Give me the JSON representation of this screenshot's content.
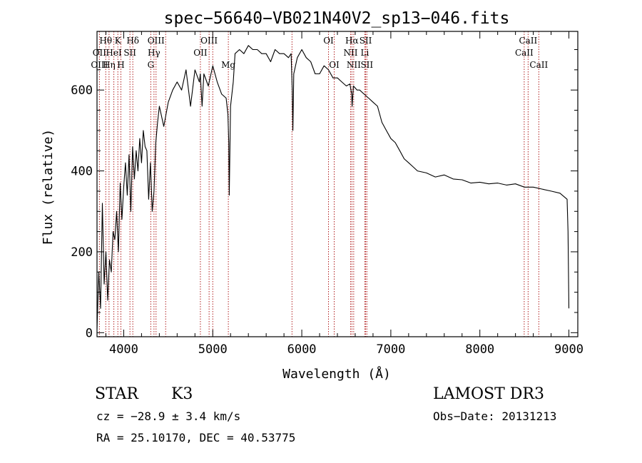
{
  "chart_data": {
    "type": "line",
    "title": "spec−56640−VB021N40V2_sp13−046.fits",
    "xlabel": "Wavelength (Å)",
    "ylabel": "Flux (relative)",
    "xlim": [
      3700,
      9100
    ],
    "ylim": [
      -10,
      745
    ],
    "x_ticks": [
      4000,
      5000,
      6000,
      7000,
      8000,
      9000
    ],
    "y_ticks": [
      0,
      200,
      400,
      600
    ],
    "grid": false,
    "line_color": "#000000",
    "marker_color": "#b22222",
    "series": [
      {
        "name": "flux",
        "x": [
          3700,
          3720,
          3740,
          3760,
          3780,
          3800,
          3820,
          3840,
          3860,
          3880,
          3900,
          3920,
          3940,
          3960,
          3980,
          4000,
          4020,
          4040,
          4060,
          4080,
          4100,
          4120,
          4140,
          4160,
          4180,
          4200,
          4220,
          4240,
          4260,
          4280,
          4300,
          4320,
          4340,
          4360,
          4380,
          4400,
          4450,
          4500,
          4550,
          4600,
          4650,
          4700,
          4750,
          4800,
          4850,
          4860,
          4880,
          4900,
          4950,
          5000,
          5050,
          5100,
          5150,
          5170,
          5180,
          5185,
          5200,
          5230,
          5250,
          5300,
          5350,
          5400,
          5450,
          5500,
          5550,
          5600,
          5650,
          5700,
          5750,
          5800,
          5850,
          5880,
          5893,
          5900,
          5910,
          5950,
          6000,
          6050,
          6100,
          6150,
          6200,
          6250,
          6300,
          6350,
          6400,
          6450,
          6500,
          6540,
          6560,
          6565,
          6580,
          6620,
          6650,
          6700,
          6750,
          6800,
          6850,
          6900,
          6950,
          7000,
          7050,
          7100,
          7150,
          7200,
          7250,
          7300,
          7400,
          7500,
          7600,
          7700,
          7800,
          7900,
          8000,
          8100,
          8200,
          8300,
          8400,
          8500,
          8600,
          8700,
          8800,
          8900,
          8980,
          8990,
          9000
        ],
        "values": [
          10,
          150,
          60,
          320,
          120,
          200,
          80,
          180,
          150,
          250,
          230,
          300,
          200,
          370,
          280,
          360,
          420,
          340,
          440,
          300,
          460,
          380,
          450,
          400,
          480,
          420,
          500,
          460,
          450,
          330,
          420,
          300,
          350,
          470,
          520,
          560,
          510,
          570,
          600,
          620,
          600,
          650,
          560,
          650,
          620,
          640,
          560,
          640,
          610,
          660,
          620,
          590,
          580,
          540,
          470,
          340,
          560,
          620,
          690,
          700,
          690,
          710,
          700,
          700,
          690,
          690,
          670,
          700,
          690,
          690,
          680,
          690,
          600,
          500,
          640,
          680,
          700,
          680,
          670,
          640,
          640,
          660,
          650,
          630,
          630,
          620,
          610,
          615,
          590,
          560,
          610,
          600,
          600,
          590,
          580,
          570,
          560,
          520,
          500,
          480,
          470,
          450,
          430,
          420,
          410,
          400,
          395,
          385,
          390,
          380,
          378,
          370,
          372,
          368,
          370,
          365,
          368,
          360,
          360,
          355,
          350,
          345,
          330,
          250,
          60
        ]
      }
    ],
    "lines": [
      {
        "name": "Hθ",
        "wavelength": 3798,
        "row": 1
      },
      {
        "name": "K",
        "wavelength": 3934,
        "row": 1
      },
      {
        "name": "Hδ",
        "wavelength": 4102,
        "row": 1
      },
      {
        "name": "OIII",
        "wavelength": 4363,
        "row": 1
      },
      {
        "name": "OIII",
        "wavelength": 4959,
        "row": 1
      },
      {
        "name": "OI",
        "wavelength": 6300,
        "row": 1
      },
      {
        "name": "Hα",
        "wavelength": 6563,
        "row": 1
      },
      {
        "name": "SII",
        "wavelength": 6717,
        "row": 1
      },
      {
        "name": "CaII",
        "wavelength": 8542,
        "row": 1
      },
      {
        "name": "OII",
        "wavelength": 3727,
        "row": 2
      },
      {
        "name": "HeI",
        "wavelength": 3889,
        "row": 2
      },
      {
        "name": "SII",
        "wavelength": 4070,
        "row": 2
      },
      {
        "name": "Hγ",
        "wavelength": 4340,
        "row": 2
      },
      {
        "name": "OII",
        "wavelength": 4861,
        "row": 2
      },
      {
        "name": "NII",
        "wavelength": 6548,
        "row": 2
      },
      {
        "name": "Li",
        "wavelength": 6708,
        "row": 2
      },
      {
        "name": "CaII",
        "wavelength": 8498,
        "row": 2
      },
      {
        "name": "OIII",
        "wavelength": 3727,
        "row": 3
      },
      {
        "name": "Hη",
        "wavelength": 3835,
        "row": 3
      },
      {
        "name": "H",
        "wavelength": 3968,
        "row": 3
      },
      {
        "name": "G",
        "wavelength": 4304,
        "row": 3
      },
      {
        "name": "Mg",
        "wavelength": 5175,
        "row": 3
      },
      {
        "name": "OI",
        "wavelength": 6364,
        "row": 3
      },
      {
        "name": "NII",
        "wavelength": 6583,
        "row": 3
      },
      {
        "name": "SII",
        "wavelength": 6731,
        "row": 3
      },
      {
        "name": "CaII",
        "wavelength": 8662,
        "row": 3
      }
    ],
    "extra_marker_lines": [
      4471,
      5000,
      5890,
      6717
    ]
  },
  "info": {
    "class_label": "STAR",
    "subclass": "K3",
    "survey": "LAMOST DR3",
    "cz": "cz = −28.9 ± 3.4 km/s",
    "obs_date": "Obs−Date: 20131213",
    "coords": "RA =  25.10170, DEC =  40.53775"
  }
}
